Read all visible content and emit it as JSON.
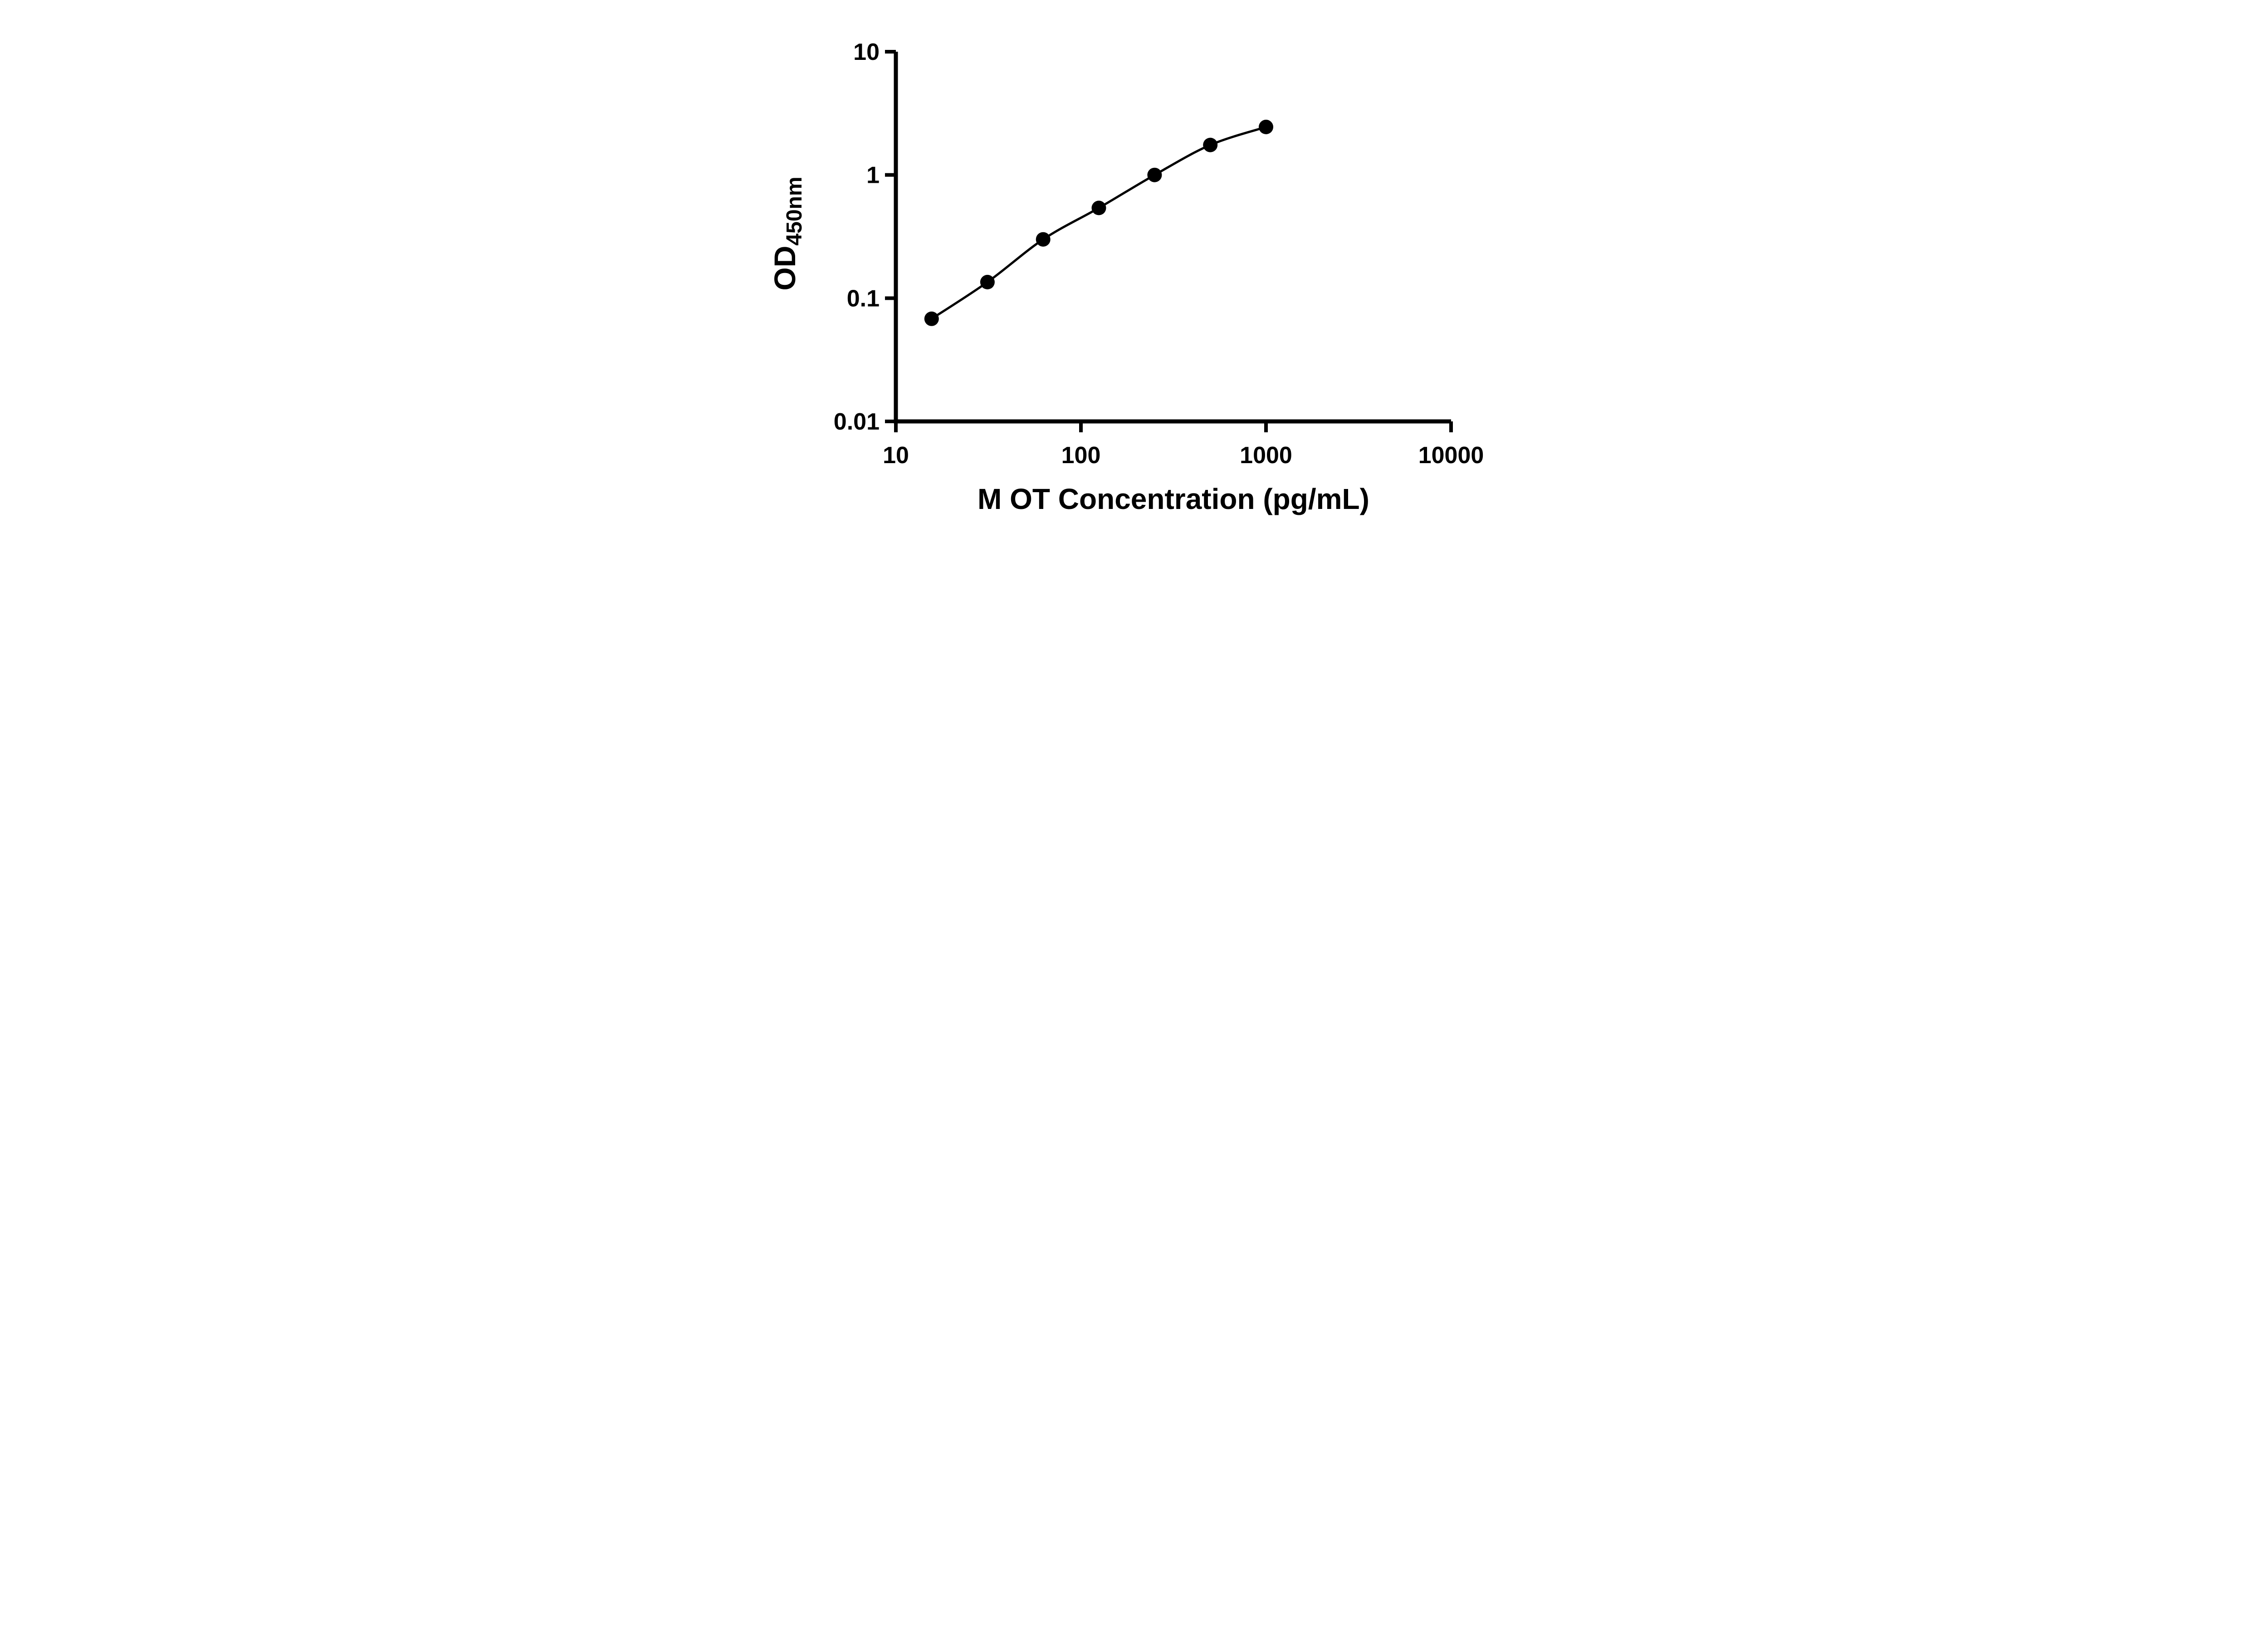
{
  "chart_data": {
    "type": "scatter",
    "subtype": "log-log standard curve with smooth connecting line",
    "title": "",
    "xlabel": "M OT Concentration (pg/mL)",
    "ylabel_main": "OD",
    "ylabel_sub": "450nm",
    "x_scale": "log",
    "y_scale": "log",
    "xlim": [
      10,
      10000
    ],
    "ylim": [
      0.01,
      10
    ],
    "x_ticks": [
      10,
      100,
      1000,
      10000
    ],
    "x_tick_labels": [
      "10",
      "100",
      "1000",
      "10000"
    ],
    "y_ticks": [
      0.01,
      0.1,
      1,
      10
    ],
    "y_tick_labels": [
      "0.01",
      "0.1",
      "1",
      "10"
    ],
    "points": [
      {
        "x": 15.6,
        "y": 0.068
      },
      {
        "x": 31.25,
        "y": 0.135
      },
      {
        "x": 62.5,
        "y": 0.3
      },
      {
        "x": 125,
        "y": 0.54
      },
      {
        "x": 250,
        "y": 1.0
      },
      {
        "x": 500,
        "y": 1.75
      },
      {
        "x": 1000,
        "y": 2.45
      }
    ],
    "marker_color": "#000000",
    "line_color": "#000000",
    "axis_color": "#000000",
    "background": "#ffffff",
    "grid": "off",
    "legend": "none"
  }
}
